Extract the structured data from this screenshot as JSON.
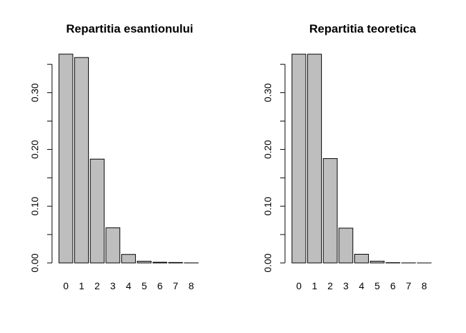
{
  "chart_data": [
    {
      "type": "bar",
      "title": "Repartitia esantionului",
      "xlabel": "",
      "ylabel": "",
      "categories": [
        "0",
        "1",
        "2",
        "3",
        "4",
        "5",
        "6",
        "7",
        "8"
      ],
      "values": [
        0.368,
        0.362,
        0.183,
        0.062,
        0.015,
        0.003,
        0.0012,
        0.0008,
        0.0001
      ],
      "ylim": [
        0,
        0.368
      ],
      "yticks": [
        "0.00",
        "0.10",
        "0.20",
        "0.30"
      ],
      "ytick_values": [
        0,
        0.1,
        0.2,
        0.3
      ],
      "bar_color": "#bebebe",
      "grid": false
    },
    {
      "type": "bar",
      "title": "Repartitia teoretica",
      "xlabel": "",
      "ylabel": "",
      "categories": [
        "0",
        "1",
        "2",
        "3",
        "4",
        "5",
        "6",
        "7",
        "8"
      ],
      "values": [
        0.3679,
        0.3679,
        0.1839,
        0.0613,
        0.0153,
        0.0031,
        0.0005,
        0.0001,
        1e-05
      ],
      "ylim": [
        0,
        0.368
      ],
      "yticks": [
        "0.00",
        "0.10",
        "0.20",
        "0.30"
      ],
      "ytick_values": [
        0,
        0.1,
        0.2,
        0.3
      ],
      "bar_color": "#bebebe",
      "grid": false
    }
  ]
}
